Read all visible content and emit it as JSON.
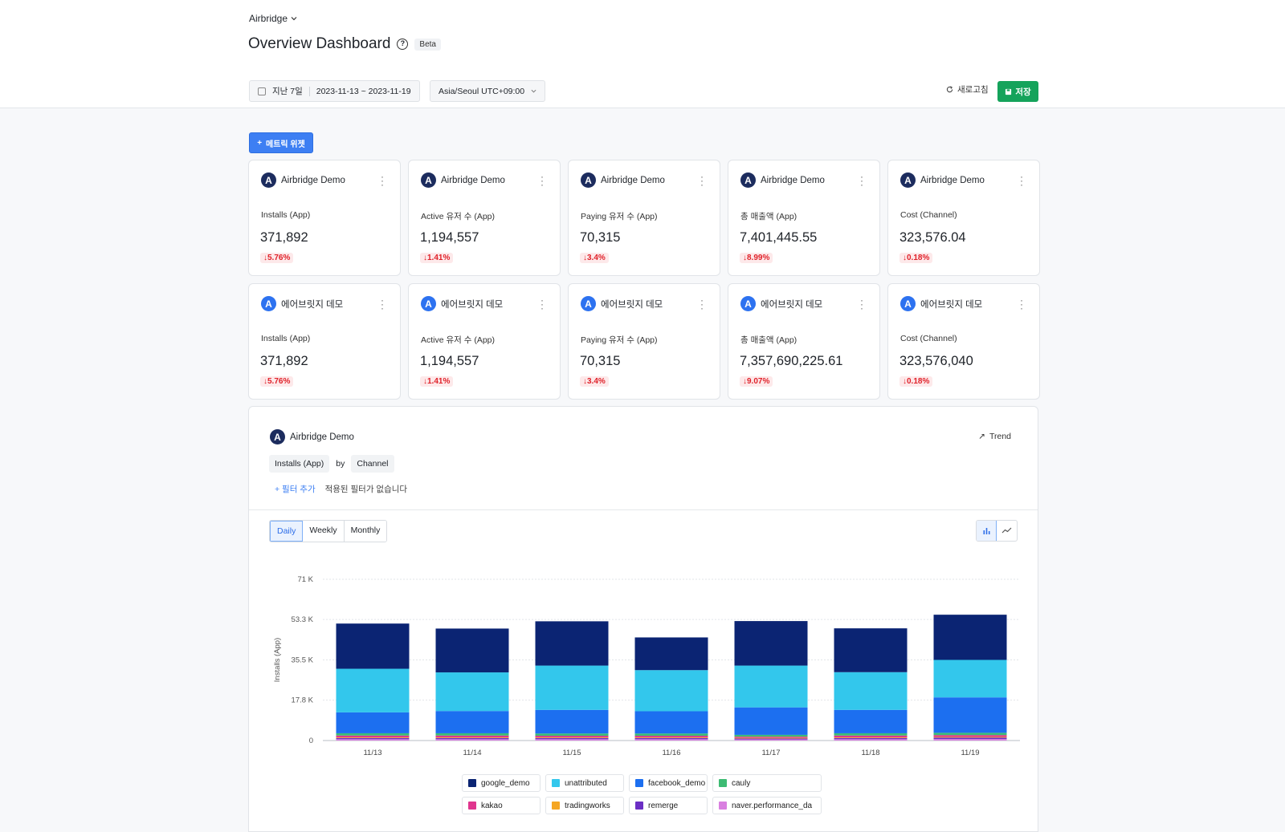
{
  "header": {
    "app_switcher": "Airbridge",
    "title": "Overview Dashboard",
    "beta": "Beta",
    "date_preset": "지난 7일",
    "date_range": "2023-11-13 ~ 2023-11-19",
    "timezone": "Asia/Seoul UTC+09:00",
    "refresh_label": "새로고침",
    "save_label": "저장"
  },
  "add_widget_label": "메트릭 위젯",
  "cards_row1": [
    {
      "app": "Airbridge Demo",
      "metric": "Installs (App)",
      "value": "371,892",
      "delta": "5.76%"
    },
    {
      "app": "Airbridge Demo",
      "metric": "Active 유저 수 (App)",
      "value": "1,194,557",
      "delta": "1.41%"
    },
    {
      "app": "Airbridge Demo",
      "metric": "Paying 유저 수 (App)",
      "value": "70,315",
      "delta": "3.4%"
    },
    {
      "app": "Airbridge Demo",
      "metric": "총 매출액 (App)",
      "value": "7,401,445.55",
      "delta": "8.99%"
    },
    {
      "app": "Airbridge Demo",
      "metric": "Cost (Channel)",
      "value": "323,576.04",
      "delta": "0.18%"
    }
  ],
  "cards_row2": [
    {
      "app": "에어브릿지 데모",
      "metric": "Installs (App)",
      "value": "371,892",
      "delta": "5.76%"
    },
    {
      "app": "에어브릿지 데모",
      "metric": "Active 유저 수 (App)",
      "value": "1,194,557",
      "delta": "1.41%"
    },
    {
      "app": "에어브릿지 데모",
      "metric": "Paying 유저 수 (App)",
      "value": "70,315",
      "delta": "3.4%"
    },
    {
      "app": "에어브릿지 데모",
      "metric": "총 매출액 (App)",
      "value": "7,357,690,225.61",
      "delta": "9.07%"
    },
    {
      "app": "에어브릿지 데모",
      "metric": "Cost (Channel)",
      "value": "323,576,040",
      "delta": "0.18%"
    }
  ],
  "chart_widget": {
    "app": "Airbridge Demo",
    "trend_label": "Trend",
    "metric_chip": "Installs (App)",
    "by_label": "by",
    "group_chip": "Channel",
    "filter_add": "+ 필터 추가",
    "filter_none": "적용된 필터가 없습니다",
    "periods": [
      "Daily",
      "Weekly",
      "Monthly"
    ],
    "active_period": "Daily"
  },
  "chart_data": {
    "type": "bar",
    "stacked": true,
    "categories": [
      "11/13",
      "11/14",
      "11/15",
      "11/16",
      "11/17",
      "11/18",
      "11/19"
    ],
    "ylabel": "Installs (App)",
    "ylim": [
      0,
      71000
    ],
    "yticks": [
      0,
      17800,
      35500,
      53300,
      71000
    ],
    "ytick_labels": [
      "0",
      "17.8 K",
      "35.5 K",
      "53.3 K",
      "71 K"
    ],
    "grid": true,
    "series": [
      {
        "name": "naver.performance_da",
        "color": "#d97fe0",
        "values": [
          600,
          600,
          600,
          600,
          500,
          600,
          700
        ]
      },
      {
        "name": "remerge",
        "color": "#6b2fc4",
        "values": [
          500,
          500,
          500,
          500,
          400,
          500,
          600
        ]
      },
      {
        "name": "tradingworks",
        "color": "#f5a623",
        "values": [
          300,
          300,
          300,
          300,
          300,
          300,
          300
        ]
      },
      {
        "name": "kakao",
        "color": "#e0358e",
        "values": [
          800,
          800,
          700,
          700,
          500,
          800,
          800
        ]
      },
      {
        "name": "cauly",
        "color": "#3dbb73",
        "values": [
          1000,
          1000,
          1000,
          1000,
          800,
          1000,
          1000
        ]
      },
      {
        "name": "facebook_demo",
        "color": "#1c6ff0",
        "values": [
          9200,
          9800,
          10400,
          9800,
          12100,
          10300,
          15600
        ]
      },
      {
        "name": "unattributed",
        "color": "#33c7ec",
        "values": [
          19200,
          17000,
          19500,
          18100,
          18400,
          16600,
          16500
        ]
      },
      {
        "name": "google_demo",
        "color": "#0b2473",
        "values": [
          19900,
          19300,
          19500,
          14400,
          19600,
          19300,
          19900
        ]
      }
    ],
    "legend_order": [
      "google_demo",
      "unattributed",
      "facebook_demo",
      "cauly",
      "kakao",
      "tradingworks",
      "remerge",
      "naver.performance_da"
    ],
    "legend_placement": "bottom"
  }
}
